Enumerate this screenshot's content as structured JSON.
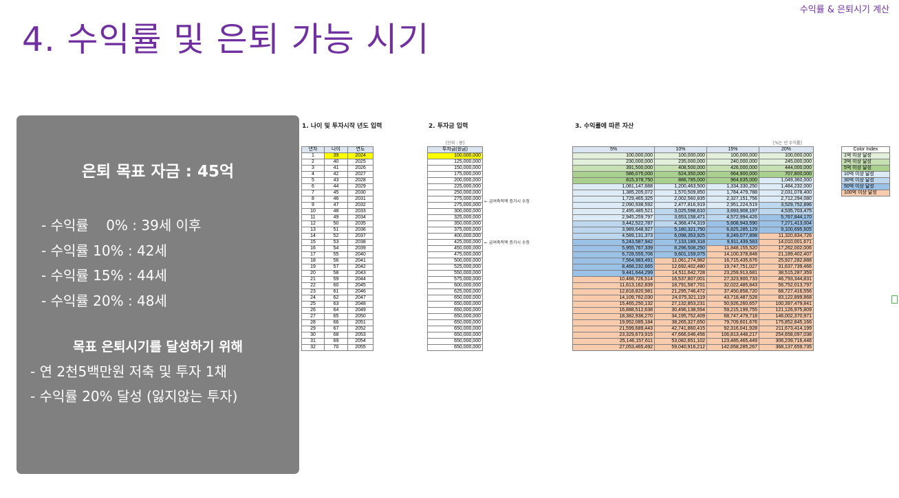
{
  "header": {
    "right_label": "수익률 & 은퇴시기 계산",
    "title": "4. 수익률 및 은퇴 가능 시기"
  },
  "summary": {
    "goal": "은퇴 목표 자금 : 45억",
    "lines": [
      "- 수익률    0% : 39세 이후",
      "- 수익률 10% : 42세",
      "- 수익률 15% : 44세",
      "- 수익률 20% : 48세"
    ],
    "subtitle": "목표 은퇴시기를 달성하기 위해",
    "actions": [
      "- 연 2천5백만원 저축 및 투자 1채",
      "- 수익률 20% 달성 (잃지않는 투자)"
    ]
  },
  "sections": {
    "s1": "1. 나이 및 투자시작 년도 입력",
    "s2": "2. 투자금 입력",
    "s3": "3. 수익률에 따른 자산"
  },
  "units": {
    "investment": "[단위 : 원]",
    "rate": "[%는 년 수익률]"
  },
  "table1": {
    "headers": [
      "년차",
      "나이",
      "연도"
    ]
  },
  "table2": {
    "header": "투자금(원금)"
  },
  "table3": {
    "headers": [
      "5%",
      "10%",
      "15%",
      "20%"
    ]
  },
  "notes": {
    "row6": "← 급여축적액 증가시 수정",
    "row11": "← 급여축적액 증가시 수정"
  },
  "legend": {
    "header": "Color Index",
    "items": [
      {
        "label": "1억 이상 달성",
        "color": "#e2efda"
      },
      {
        "label": "3억 이상 달성",
        "color": "#c6e0b4"
      },
      {
        "label": "5억 이상 달성",
        "color": "#a9d08e"
      },
      {
        "label": "10억 이상 달성",
        "color": "#ddebf7"
      },
      {
        "label": "30억 이상 달성",
        "color": "#bdd7ee"
      },
      {
        "label": "50억 이상 달성",
        "color": "#9bc2e6"
      },
      {
        "label": "100억 이상 달성",
        "color": "#f8cbad"
      }
    ]
  },
  "rows": [
    {
      "n": "1",
      "age": "39",
      "year": "2024",
      "inv": "100,000,000",
      "v": [
        "100,000,000",
        "100,000,000",
        "100,000,000",
        "100,000,000"
      ]
    },
    {
      "n": "2",
      "age": "40",
      "year": "2025",
      "inv": "125,000,000",
      "v": [
        "230,000,000",
        "235,000,000",
        "240,000,000",
        "245,000,000"
      ]
    },
    {
      "n": "3",
      "age": "41",
      "year": "2026",
      "inv": "150,000,000",
      "v": [
        "391,500,000",
        "408,500,000",
        "426,000,000",
        "444,000,000"
      ]
    },
    {
      "n": "4",
      "age": "42",
      "year": "2027",
      "inv": "175,000,000",
      "v": [
        "586,075,000",
        "624,350,000",
        "664,900,000",
        "707,800,000"
      ]
    },
    {
      "n": "5",
      "age": "43",
      "year": "2028",
      "inv": "200,000,000",
      "v": [
        "815,378,750",
        "886,785,000",
        "964,635,000",
        "1,049,360,000"
      ]
    },
    {
      "n": "6",
      "age": "44",
      "year": "2029",
      "inv": "225,000,000",
      "v": [
        "1,081,147,688",
        "1,200,463,500",
        "1,334,330,250",
        "1,484,232,000"
      ]
    },
    {
      "n": "7",
      "age": "45",
      "year": "2030",
      "inv": "250,000,000",
      "v": [
        "1,385,205,072",
        "1,570,509,850",
        "1,784,479,788",
        "2,031,078,400"
      ]
    },
    {
      "n": "8",
      "age": "46",
      "year": "2031",
      "inv": "275,000,000",
      "v": [
        "1,729,465,325",
        "2,002,560,835",
        "2,327,151,756",
        "2,712,294,080"
      ]
    },
    {
      "n": "9",
      "age": "47",
      "year": "2032",
      "inv": "275,000,000",
      "v": [
        "2,090,938,592",
        "2,477,816,919",
        "2,951,224,519",
        "3,529,752,896"
      ]
    },
    {
      "n": "10",
      "age": "48",
      "year": "2033",
      "inv": "300,000,000",
      "v": [
        "2,495,485,521",
        "3,025,598,610",
        "3,693,908,197",
        "4,535,703,475"
      ]
    },
    {
      "n": "11",
      "age": "49",
      "year": "2034",
      "inv": "325,000,000",
      "v": [
        "2,945,259,797",
        "3,653,158,471",
        "4,572,994,426",
        "5,767,844,170"
      ]
    },
    {
      "n": "12",
      "age": "50",
      "year": "2035",
      "inv": "350,000,000",
      "v": [
        "3,442,522,787",
        "4,368,474,319",
        "5,608,943,590",
        "7,271,413,004"
      ]
    },
    {
      "n": "13",
      "age": "51",
      "year": "2036",
      "inv": "375,000,000",
      "v": [
        "3,989,648,927",
        "5,180,321,750",
        "6,825,285,129",
        "9,100,695,605"
      ]
    },
    {
      "n": "14",
      "age": "52",
      "year": "2037",
      "inv": "400,000,000",
      "v": [
        "4,589,131,373",
        "6,098,353,925",
        "8,249,077,898",
        "11,320,834,726"
      ]
    },
    {
      "n": "15",
      "age": "53",
      "year": "2038",
      "inv": "425,000,000",
      "v": [
        "5,243,587,942",
        "7,133,189,318",
        "9,911,439,583",
        "14,010,001,671"
      ]
    },
    {
      "n": "16",
      "age": "54",
      "year": "2039",
      "inv": "450,000,000",
      "v": [
        "5,955,767,339",
        "8,296,508,250",
        "11,848,155,520",
        "17,262,002,006"
      ]
    },
    {
      "n": "17",
      "age": "55",
      "year": "2040",
      "inv": "475,000,000",
      "v": [
        "6,728,555,706",
        "9,601,159,075",
        "14,100,378,848",
        "21,189,402,407"
      ]
    },
    {
      "n": "18",
      "age": "56",
      "year": "2041",
      "inv": "500,000,000",
      "v": [
        "7,564,983,491",
        "11,061,274,982",
        "16,715,435,676",
        "25,927,282,888"
      ]
    },
    {
      "n": "19",
      "age": "57",
      "year": "2042",
      "inv": "525,000,000",
      "v": [
        "8,468,232,665",
        "12,692,402,480",
        "19,747,751,027",
        "31,637,739,466"
      ]
    },
    {
      "n": "20",
      "age": "58",
      "year": "2043",
      "inv": "550,000,000",
      "v": [
        "9,441,644,299",
        "14,511,642,728",
        "23,259,913,681",
        "38,515,287,359"
      ]
    },
    {
      "n": "21",
      "age": "59",
      "year": "2044",
      "inv": "575,000,000",
      "v": [
        "10,488,726,514",
        "16,537,807,001",
        "27,323,900,733",
        "46,793,344,831"
      ]
    },
    {
      "n": "22",
      "age": "60",
      "year": "2045",
      "inv": "600,000,000",
      "v": [
        "11,613,162,839",
        "18,791,587,701",
        "32,022,485,843",
        "56,752,013,797"
      ]
    },
    {
      "n": "23",
      "age": "61",
      "year": "2046",
      "inv": "625,000,000",
      "v": [
        "12,818,820,981",
        "21,295,746,472",
        "37,450,858,720",
        "68,727,416,556"
      ]
    },
    {
      "n": "24",
      "age": "62",
      "year": "2047",
      "inv": "650,000,000",
      "v": [
        "14,109,762,030",
        "24,075,321,119",
        "43,718,487,528",
        "83,122,899,868"
      ]
    },
    {
      "n": "25",
      "age": "63",
      "year": "2048",
      "inv": "650,000,000",
      "v": [
        "15,465,250,132",
        "27,132,853,231",
        "50,926,260,657",
        "100,397,479,841"
      ]
    },
    {
      "n": "26",
      "age": "64",
      "year": "2049",
      "inv": "650,000,000",
      "v": [
        "16,888,512,638",
        "30,496,138,554",
        "59,215,199,755",
        "121,126,975,809"
      ]
    },
    {
      "n": "27",
      "age": "65",
      "year": "2050",
      "inv": "650,000,000",
      "v": [
        "18,382,938,270",
        "34,195,752,409",
        "68,747,479,718",
        "146,002,370,971"
      ]
    },
    {
      "n": "28",
      "age": "66",
      "year": "2051",
      "inv": "650,000,000",
      "v": [
        "19,952,085,184",
        "38,265,327,650",
        "79,709,601,676",
        "175,852,845,166"
      ]
    },
    {
      "n": "29",
      "age": "67",
      "year": "2052",
      "inv": "650,000,000",
      "v": [
        "21,599,689,443",
        "42,741,860,415",
        "92,316,041,928",
        "211,673,414,199"
      ]
    },
    {
      "n": "30",
      "age": "68",
      "year": "2053",
      "inv": "650,000,000",
      "v": [
        "23,329,673,915",
        "47,666,046,456",
        "106,813,448,217",
        "254,658,097,038"
      ]
    },
    {
      "n": "31",
      "age": "69",
      "year": "2054",
      "inv": "650,000,000",
      "v": [
        "25,146,157,611",
        "53,082,651,102",
        "123,485,465,449",
        "306,239,716,446"
      ]
    },
    {
      "n": "32",
      "age": "70",
      "year": "2055",
      "inv": "650,000,000",
      "v": [
        "27,053,465,492",
        "59,040,916,212",
        "142,658,285,267",
        "368,137,659,735"
      ]
    }
  ]
}
